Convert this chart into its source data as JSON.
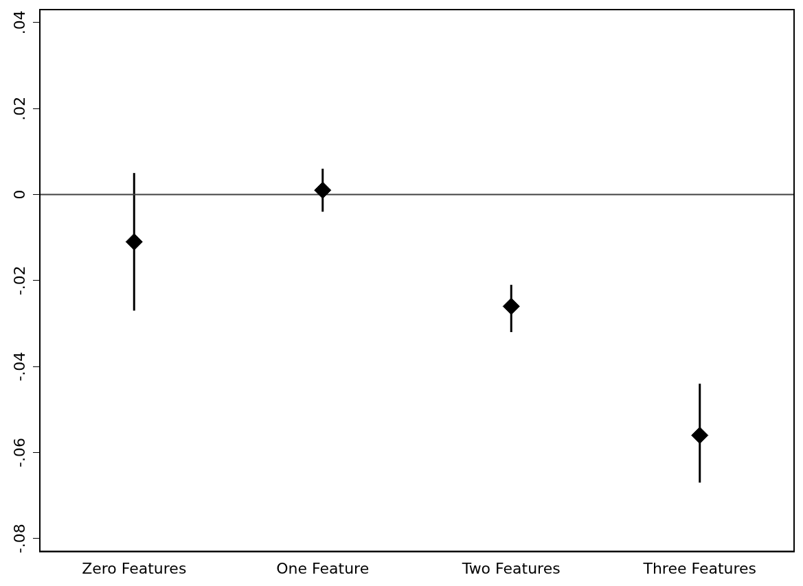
{
  "chart_data": {
    "type": "scatter",
    "categories": [
      "Zero Features",
      "One Feature",
      "Two Features",
      "Three Features"
    ],
    "values": [
      -0.011,
      0.001,
      -0.026,
      -0.056
    ],
    "errors": [
      [
        -0.027,
        0.005
      ],
      [
        -0.004,
        0.006
      ],
      [
        -0.032,
        -0.021
      ],
      [
        -0.067,
        -0.044
      ]
    ],
    "color": "#000000",
    "marker": "diamond",
    "grid": false,
    "legend": false,
    "ylim": [
      -0.083,
      0.043
    ],
    "yticks": [
      {
        "value": -0.08,
        "label": "-.08"
      },
      {
        "value": -0.06,
        "label": "-.06"
      },
      {
        "value": -0.04,
        "label": "-.04"
      },
      {
        "value": -0.02,
        "label": "-.02"
      },
      0,
      {
        "value": 0.02,
        "label": ".02"
      },
      {
        "value": 0.04,
        "label": ".04"
      }
    ],
    "ref_lines": [
      {
        "axis": "y",
        "value": 0,
        "color": "#404040"
      }
    ]
  }
}
